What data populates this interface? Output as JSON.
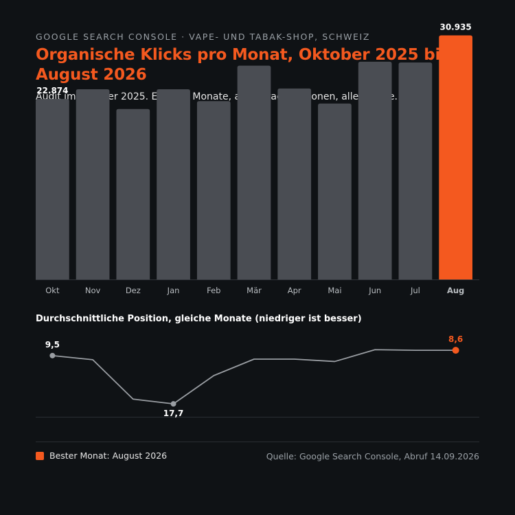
{
  "header": {
    "kicker": "GOOGLE SEARCH CONSOLE · VAPE- UND TABAK-SHOP, SCHWEIZ",
    "title": "Organische Klicks pro Monat, Oktober 2025 bis August 2026",
    "subtitle": "Audit im Oktober 2025. Elf volle Monate, alle Sprachversionen, alle Geräte."
  },
  "colors": {
    "accent": "#f4591f",
    "bar": "#4a4d53",
    "line": "#9a9ea3",
    "background": "#0f1215"
  },
  "chart_data": [
    {
      "type": "bar",
      "title": "",
      "categories": [
        "Okt",
        "Nov",
        "Dez",
        "Jan",
        "Feb",
        "Mär",
        "Apr",
        "Mai",
        "Jun",
        "Jul",
        "Aug"
      ],
      "values": [
        22874,
        24100,
        21600,
        24100,
        22600,
        27100,
        24200,
        22300,
        27600,
        27500,
        30935
      ],
      "data_labels": [
        {
          "index": 0,
          "text": "22.874"
        },
        {
          "index": 10,
          "text": "30.935"
        }
      ],
      "highlight_index": 10,
      "ylim": [
        0,
        31500
      ],
      "grid": false
    },
    {
      "type": "line",
      "title": "Durchschnittliche Position, gleiche Monate (niedriger ist besser)",
      "categories": [
        "Okt",
        "Nov",
        "Dez",
        "Jan",
        "Feb",
        "Mär",
        "Apr",
        "Mai",
        "Jun",
        "Jul",
        "Aug"
      ],
      "values": [
        9.5,
        10.2,
        16.9,
        17.7,
        12.9,
        10.1,
        10.1,
        10.5,
        8.5,
        8.6,
        8.6
      ],
      "point_labels": [
        {
          "index": 0,
          "text": "9,5"
        },
        {
          "index": 3,
          "text": "17,7"
        },
        {
          "index": 10,
          "text": "8,6"
        }
      ],
      "highlight_index": 10,
      "inverted_axis": true,
      "ylim": [
        8.0,
        19.9
      ]
    }
  ],
  "footer": {
    "legend_label": "Bester Monat: August 2026",
    "source": "Quelle: Google Search Console, Abruf 14.09.2026"
  }
}
